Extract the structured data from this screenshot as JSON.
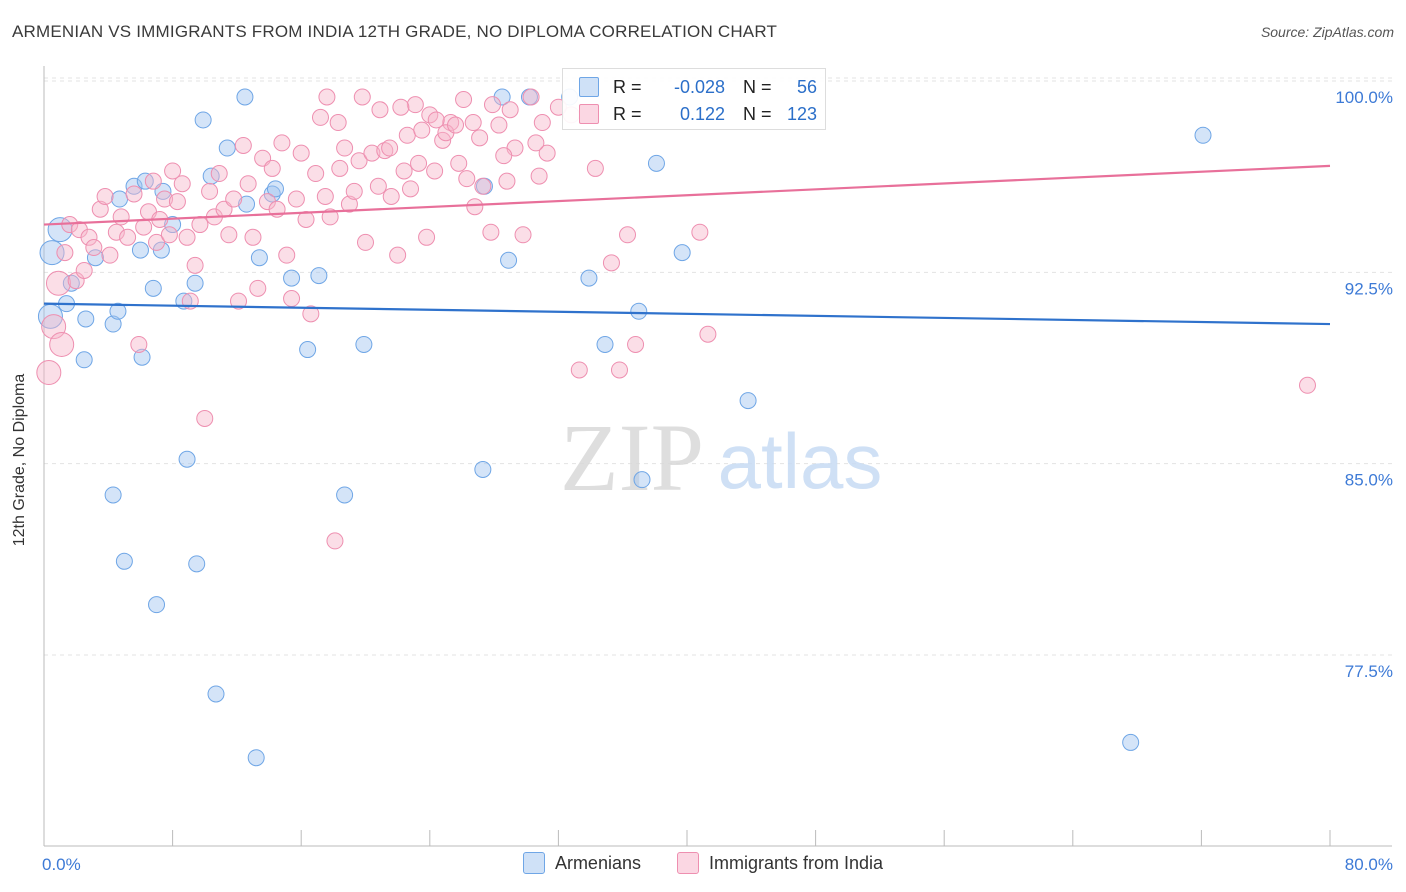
{
  "title": "ARMENIAN VS IMMIGRANTS FROM INDIA 12TH GRADE, NO DIPLOMA CORRELATION CHART",
  "source": "Source: ZipAtlas.com",
  "watermark": {
    "zip": "ZIP",
    "atlas": "atlas"
  },
  "stats": [
    {
      "r_label": "R =",
      "r_value": "-0.028",
      "n_label": "N =",
      "n_value": "56",
      "color": "#a9c8f0"
    },
    {
      "r_label": "R =",
      "r_value": "0.122",
      "n_label": "N =",
      "n_value": "123",
      "color": "#f6b5c9"
    }
  ],
  "legend": [
    {
      "label": "Armenians",
      "color": "#a9c8f0"
    },
    {
      "label": "Immigrants from India",
      "color": "#f6b5c9"
    }
  ],
  "chart_data": {
    "type": "scatter",
    "title": "ARMENIAN VS IMMIGRANTS FROM INDIA 12TH GRADE, NO DIPLOMA CORRELATION CHART",
    "xlabel": "",
    "ylabel": "12th Grade, No Diploma",
    "xlim": [
      0,
      80
    ],
    "ylim": [
      70.5,
      101.5
    ],
    "x_tick_labels": [
      {
        "value": 0,
        "label": "0.0%"
      },
      {
        "value": 80,
        "label": "80.0%"
      }
    ],
    "y_tick_labels": [
      {
        "value": 100,
        "label": "100.0%"
      },
      {
        "value": 92.5,
        "label": "92.5%"
      },
      {
        "value": 85,
        "label": "85.0%"
      },
      {
        "value": 77.5,
        "label": "77.5%"
      }
    ],
    "grid": true,
    "series": [
      {
        "name": "Armenians",
        "color": "#6fa6e6",
        "fill": "rgba(160,196,240,0.45)",
        "trend": {
          "x": [
            0,
            80
          ],
          "y": [
            91.9,
            91.1
          ],
          "color": "#2f72cc"
        },
        "points": [
          [
            0.4,
            91.4
          ],
          [
            0.5,
            93.9
          ],
          [
            1.0,
            94.8
          ],
          [
            1.4,
            91.9
          ],
          [
            1.7,
            92.7
          ],
          [
            2.5,
            89.7
          ],
          [
            2.6,
            91.3
          ],
          [
            3.2,
            93.7
          ],
          [
            4.3,
            91.1
          ],
          [
            4.3,
            84.4
          ],
          [
            4.6,
            91.6
          ],
          [
            4.7,
            96.0
          ],
          [
            5.0,
            81.8
          ],
          [
            5.6,
            96.5
          ],
          [
            6.0,
            94.0
          ],
          [
            6.1,
            89.8
          ],
          [
            6.3,
            96.7
          ],
          [
            6.8,
            92.5
          ],
          [
            7.0,
            80.1
          ],
          [
            7.3,
            94.0
          ],
          [
            7.4,
            96.3
          ],
          [
            8.0,
            95.0
          ],
          [
            8.7,
            92.0
          ],
          [
            8.9,
            85.8
          ],
          [
            9.4,
            92.7
          ],
          [
            9.5,
            81.7
          ],
          [
            9.9,
            99.1
          ],
          [
            10.4,
            96.9
          ],
          [
            10.7,
            76.6
          ],
          [
            11.4,
            98.0
          ],
          [
            12.5,
            100.0
          ],
          [
            12.6,
            95.8
          ],
          [
            13.2,
            74.1
          ],
          [
            13.4,
            93.7
          ],
          [
            14.2,
            96.2
          ],
          [
            14.4,
            96.4
          ],
          [
            15.4,
            92.9
          ],
          [
            16.4,
            90.1
          ],
          [
            17.1,
            93.0
          ],
          [
            18.7,
            84.4
          ],
          [
            19.9,
            90.3
          ],
          [
            27.3,
            85.4
          ],
          [
            27.4,
            96.5
          ],
          [
            28.5,
            100.0
          ],
          [
            28.9,
            93.6
          ],
          [
            30.2,
            100.0
          ],
          [
            32.7,
            100.0
          ],
          [
            33.9,
            92.9
          ],
          [
            34.9,
            90.3
          ],
          [
            37.0,
            91.6
          ],
          [
            37.2,
            85.0
          ],
          [
            38.1,
            97.4
          ],
          [
            39.7,
            93.9
          ],
          [
            43.8,
            88.1
          ],
          [
            67.6,
            74.7
          ],
          [
            72.1,
            98.5
          ]
        ]
      },
      {
        "name": "Immigrants from India",
        "color": "#ee8fb0",
        "fill": "rgba(246,181,201,0.45)",
        "trend": {
          "x": [
            0,
            80
          ],
          "y": [
            95.0,
            97.3
          ],
          "color": "#e8709a"
        },
        "points": [
          [
            0.3,
            89.2
          ],
          [
            0.6,
            91.0
          ],
          [
            0.9,
            92.7
          ],
          [
            1.1,
            90.3
          ],
          [
            1.3,
            93.9
          ],
          [
            1.6,
            95.0
          ],
          [
            2.0,
            92.8
          ],
          [
            2.2,
            94.8
          ],
          [
            2.5,
            93.2
          ],
          [
            2.8,
            94.5
          ],
          [
            3.1,
            94.1
          ],
          [
            3.5,
            95.6
          ],
          [
            3.8,
            96.1
          ],
          [
            4.1,
            93.8
          ],
          [
            4.5,
            94.7
          ],
          [
            4.8,
            95.3
          ],
          [
            5.2,
            94.5
          ],
          [
            5.6,
            96.2
          ],
          [
            5.9,
            90.3
          ],
          [
            6.2,
            94.9
          ],
          [
            6.5,
            95.5
          ],
          [
            6.8,
            96.7
          ],
          [
            7.0,
            94.3
          ],
          [
            7.2,
            95.2
          ],
          [
            7.5,
            96.0
          ],
          [
            7.8,
            94.6
          ],
          [
            8.0,
            97.1
          ],
          [
            8.3,
            95.9
          ],
          [
            8.6,
            96.6
          ],
          [
            8.9,
            94.5
          ],
          [
            9.1,
            92.0
          ],
          [
            9.4,
            93.4
          ],
          [
            9.7,
            95.0
          ],
          [
            10.0,
            87.4
          ],
          [
            10.3,
            96.3
          ],
          [
            10.6,
            95.3
          ],
          [
            10.9,
            97.0
          ],
          [
            11.2,
            95.6
          ],
          [
            11.5,
            94.6
          ],
          [
            11.8,
            96.0
          ],
          [
            12.1,
            92.0
          ],
          [
            12.4,
            98.1
          ],
          [
            12.7,
            96.6
          ],
          [
            13.0,
            94.5
          ],
          [
            13.3,
            92.5
          ],
          [
            13.6,
            97.6
          ],
          [
            13.9,
            95.9
          ],
          [
            14.2,
            97.2
          ],
          [
            14.5,
            95.6
          ],
          [
            14.8,
            98.2
          ],
          [
            15.1,
            93.8
          ],
          [
            15.4,
            92.1
          ],
          [
            15.7,
            96.0
          ],
          [
            16.0,
            97.8
          ],
          [
            16.3,
            95.2
          ],
          [
            16.6,
            91.5
          ],
          [
            16.9,
            97.0
          ],
          [
            17.2,
            99.2
          ],
          [
            17.5,
            96.1
          ],
          [
            17.8,
            95.3
          ],
          [
            18.1,
            82.6
          ],
          [
            18.4,
            97.2
          ],
          [
            18.7,
            98.0
          ],
          [
            19.0,
            95.8
          ],
          [
            19.3,
            96.3
          ],
          [
            19.6,
            97.5
          ],
          [
            20.0,
            94.3
          ],
          [
            20.4,
            97.8
          ],
          [
            20.8,
            96.5
          ],
          [
            21.2,
            97.9
          ],
          [
            21.6,
            96.1
          ],
          [
            22.0,
            93.8
          ],
          [
            22.4,
            97.1
          ],
          [
            22.8,
            96.4
          ],
          [
            23.3,
            97.4
          ],
          [
            23.8,
            94.5
          ],
          [
            24.3,
            97.1
          ],
          [
            24.8,
            98.3
          ],
          [
            25.3,
            99.0
          ],
          [
            25.8,
            97.4
          ],
          [
            26.3,
            96.8
          ],
          [
            26.8,
            95.7
          ],
          [
            27.3,
            96.5
          ],
          [
            27.8,
            94.7
          ],
          [
            28.3,
            98.9
          ],
          [
            28.8,
            96.7
          ],
          [
            29.3,
            98.0
          ],
          [
            29.8,
            94.6
          ],
          [
            30.3,
            100.0
          ],
          [
            30.8,
            96.9
          ],
          [
            31.3,
            97.8
          ],
          [
            32.8,
            99.3
          ],
          [
            33.3,
            89.3
          ],
          [
            34.3,
            97.2
          ],
          [
            35.3,
            93.5
          ],
          [
            35.8,
            89.3
          ],
          [
            36.3,
            94.6
          ],
          [
            36.8,
            90.3
          ],
          [
            40.8,
            94.7
          ],
          [
            41.3,
            90.7
          ],
          [
            78.6,
            88.7
          ],
          [
            17.6,
            100.0
          ],
          [
            18.3,
            99.0
          ],
          [
            19.8,
            100.0
          ],
          [
            20.9,
            99.5
          ],
          [
            21.5,
            98.0
          ],
          [
            22.6,
            98.5
          ],
          [
            23.1,
            99.7
          ],
          [
            24.0,
            99.3
          ],
          [
            25.0,
            98.6
          ],
          [
            26.1,
            99.9
          ],
          [
            26.7,
            99.0
          ],
          [
            27.9,
            99.7
          ],
          [
            29.0,
            99.5
          ],
          [
            31.0,
            99.0
          ],
          [
            32.0,
            99.6
          ],
          [
            30.6,
            98.2
          ],
          [
            28.6,
            97.7
          ],
          [
            27.1,
            98.4
          ],
          [
            25.6,
            98.9
          ],
          [
            24.4,
            99.1
          ],
          [
            23.5,
            98.7
          ],
          [
            22.2,
            99.6
          ]
        ]
      }
    ]
  }
}
